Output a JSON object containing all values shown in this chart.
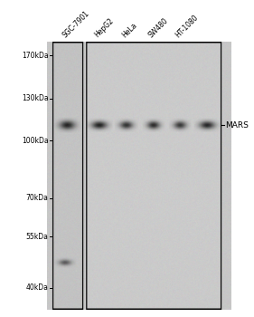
{
  "figure_width": 2.81,
  "figure_height": 3.5,
  "dpi": 100,
  "bg_color": "#ffffff",
  "sample_labels": [
    "SGC-7901",
    "HepG2",
    "HeLa",
    "SW480",
    "HT-1080"
  ],
  "mw_labels": [
    "170kDa",
    "130kDa",
    "100kDa",
    "70kDa",
    "55kDa",
    "40kDa"
  ],
  "mw_positions": [
    170,
    130,
    100,
    70,
    55,
    40
  ],
  "band_label": "MARS",
  "band_mw": 110,
  "band2_mw": 47,
  "y_min": 35,
  "y_max": 185,
  "gel_gray": 0.78,
  "band_dark": 0.18,
  "band_mid": 0.3
}
